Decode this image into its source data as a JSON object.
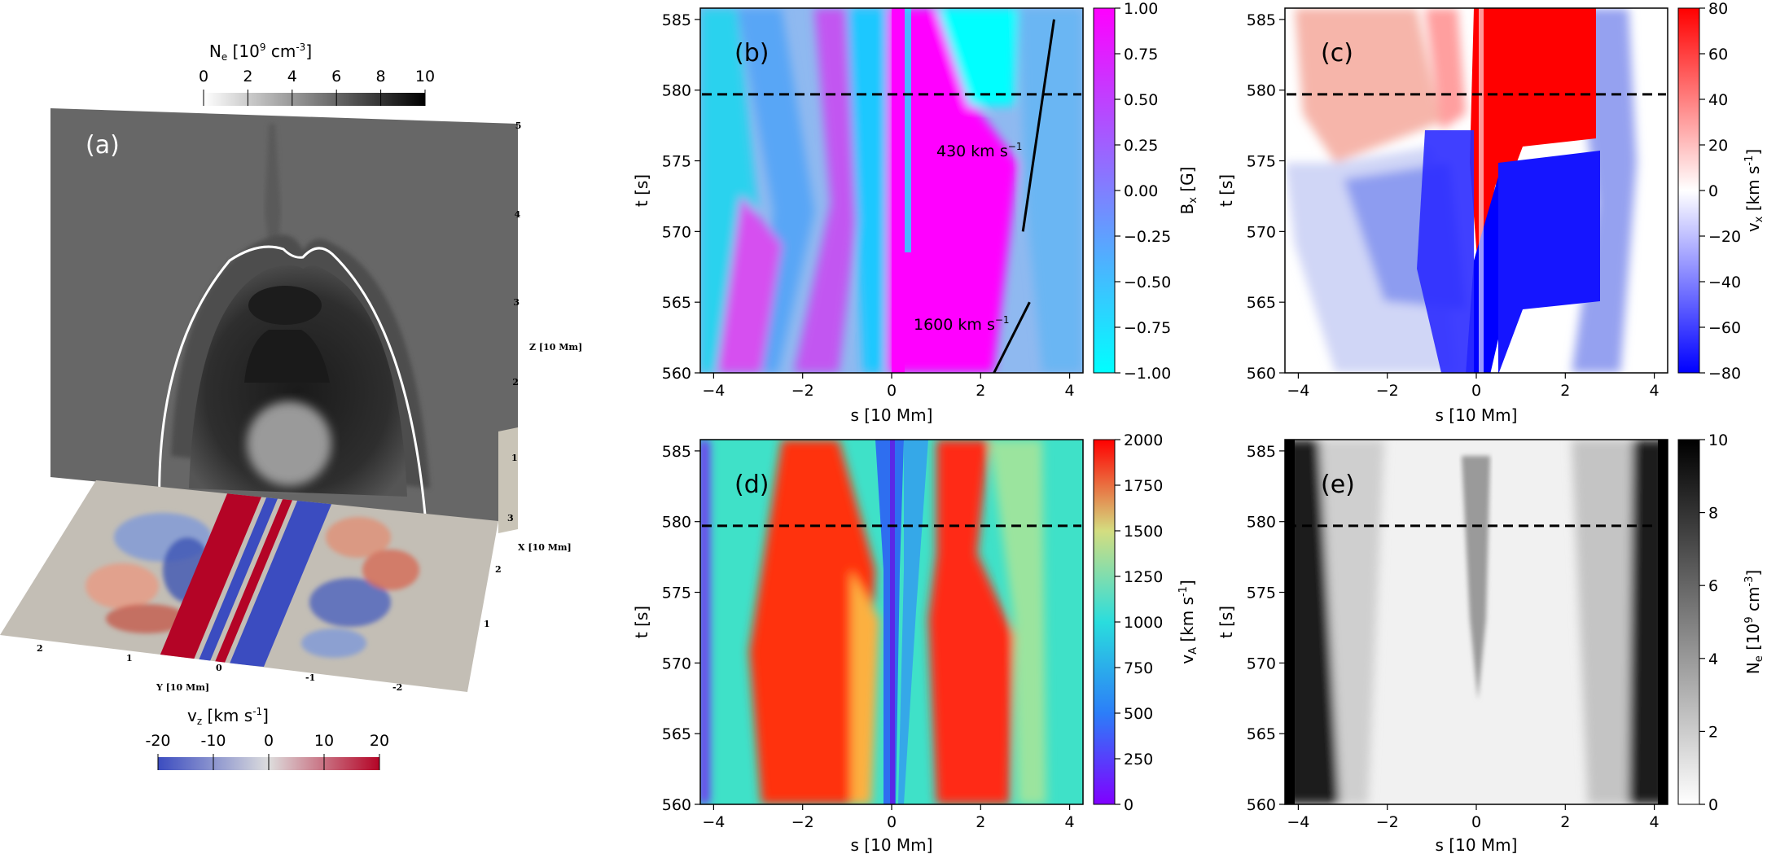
{
  "panel_a": {
    "label": "(a)",
    "density_colorbar": {
      "label": "N",
      "sub": "e",
      "unit_pre": "[10",
      "exp": "9",
      "unit_post": "cm",
      "unit_exp": "-3",
      "unit_close": "]",
      "ticks": [
        "0",
        "2",
        "4",
        "6",
        "8",
        "10"
      ]
    },
    "vz_colorbar": {
      "label": "v",
      "sub": "z",
      "unit_pre": "[km s",
      "unit_exp": "-1",
      "unit_close": "]",
      "ticks": [
        "-20",
        "-10",
        "0",
        "10",
        "20"
      ]
    },
    "z_axis": {
      "label": "Z [10 Mm]",
      "ticks": [
        "1",
        "2",
        "3",
        "4",
        "5"
      ]
    },
    "x_axis": {
      "label": "X [10 Mm]",
      "ticks": [
        "1",
        "2",
        "3"
      ]
    },
    "y_axis": {
      "label": "Y [10 Mm]",
      "ticks": [
        "2",
        "1",
        "0",
        "-1",
        "-2"
      ]
    }
  },
  "colors": {
    "bx_low": "#00ffff",
    "bx_high": "#ff00ff",
    "v_neg": "#0000ff",
    "v_pos": "#ff0000",
    "gray_low": "#ffffff",
    "gray_high": "#000000"
  },
  "chart_data": [
    {
      "type": "heatmap",
      "label": "(b)",
      "xlabel": "s [10 Mm]",
      "ylabel": "t [s]",
      "xlim": [
        -4.3,
        4.3
      ],
      "ylim": [
        560,
        585.8
      ],
      "xticks": [
        "-4",
        "-2",
        "0",
        "2",
        "4"
      ],
      "yticks": [
        "560",
        "565",
        "570",
        "575",
        "580",
        "585"
      ],
      "colorbar": {
        "label": "B",
        "sub": "x",
        "unit": "[G]",
        "range": [
          -1,
          1
        ],
        "ticks": [
          "1.00",
          "0.75",
          "0.50",
          "0.25",
          "0.00",
          "-0.25",
          "-0.50",
          "-0.75",
          "-1.00"
        ]
      },
      "dashed_line_t": 579.7,
      "annotations": [
        {
          "text": "430 km s",
          "exp": "-1",
          "line": [
            [
              3.65,
              585
            ],
            [
              2.95,
              570
            ]
          ]
        },
        {
          "text": "1600 km s",
          "exp": "-1",
          "line": [
            [
              3.1,
              565
            ],
            [
              2.3,
              560
            ]
          ]
        }
      ]
    },
    {
      "type": "heatmap",
      "label": "(c)",
      "xlabel": "s [10 Mm]",
      "ylabel": "t [s]",
      "xlim": [
        -4.3,
        4.3
      ],
      "ylim": [
        560,
        585.8
      ],
      "xticks": [
        "-4",
        "-2",
        "0",
        "2",
        "4"
      ],
      "yticks": [
        "560",
        "565",
        "570",
        "575",
        "580",
        "585"
      ],
      "colorbar": {
        "label": "v",
        "sub": "x",
        "unit_pre": "[km s",
        "unit_exp": "-1",
        "unit_close": "]",
        "range": [
          -80,
          80
        ],
        "ticks": [
          "80",
          "60",
          "40",
          "20",
          "0",
          "-20",
          "-40",
          "-60",
          "-80"
        ]
      },
      "dashed_line_t": 579.7
    },
    {
      "type": "heatmap",
      "label": "(d)",
      "xlabel": "s [10 Mm]",
      "ylabel": "t [s]",
      "xlim": [
        -4.3,
        4.3
      ],
      "ylim": [
        560,
        585.8
      ],
      "xticks": [
        "-4",
        "-2",
        "0",
        "2",
        "4"
      ],
      "yticks": [
        "560",
        "565",
        "570",
        "575",
        "580",
        "585"
      ],
      "colorbar": {
        "label": "v",
        "sub": "A",
        "unit_pre": "[km s",
        "unit_exp": "-1",
        "unit_close": "]",
        "range": [
          0,
          2000
        ],
        "ticks": [
          "2000",
          "1750",
          "1500",
          "1250",
          "1000",
          "750",
          "500",
          "250",
          "0"
        ]
      },
      "dashed_line_t": 579.7
    },
    {
      "type": "heatmap",
      "label": "(e)",
      "xlabel": "s [10 Mm]",
      "ylabel": "t [s]",
      "xlim": [
        -4.3,
        4.3
      ],
      "ylim": [
        560,
        585.8
      ],
      "xticks": [
        "-4",
        "-2",
        "0",
        "2",
        "4"
      ],
      "yticks": [
        "560",
        "565",
        "570",
        "575",
        "580",
        "585"
      ],
      "colorbar": {
        "label": "N",
        "sub": "e",
        "unit_pre": "[10",
        "exp": "9",
        "unit_post": "cm",
        "unit_exp": "-3",
        "unit_close": "]",
        "range": [
          0,
          10
        ],
        "ticks": [
          "10",
          "8",
          "6",
          "4",
          "2",
          "0"
        ]
      },
      "dashed_line_t": 579.7
    }
  ]
}
